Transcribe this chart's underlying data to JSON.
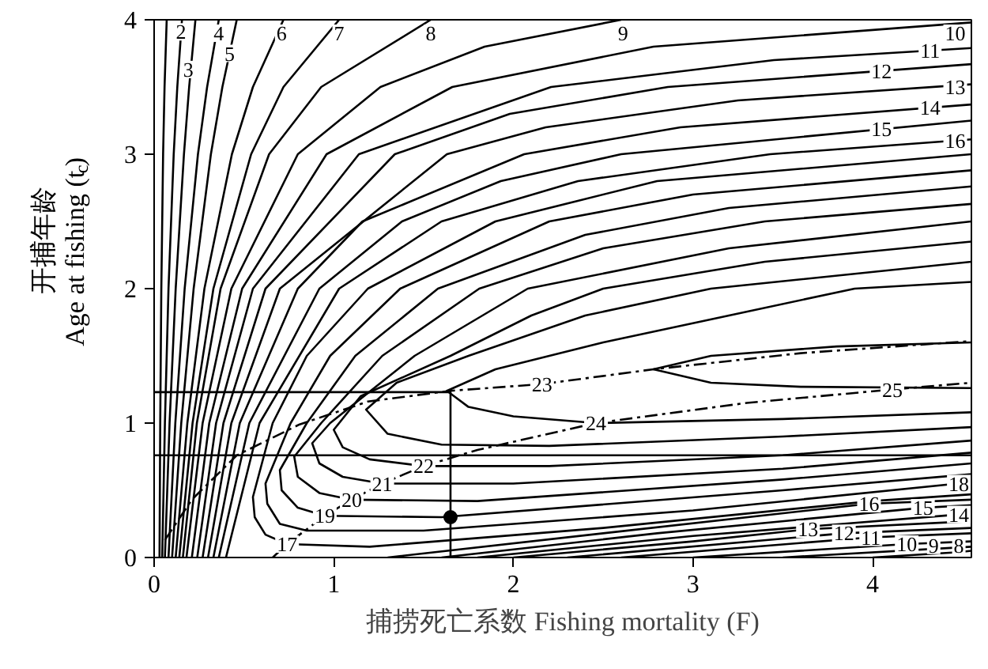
{
  "chart_data": {
    "type": "line",
    "xlabel": "捕捞死亡系数 Fishing mortality (F)",
    "ylabel": "开捕年龄\nAge at fishing (t$_{c}$)",
    "xlim": [
      0,
      4.55
    ],
    "ylim": [
      0,
      4
    ],
    "xticks": [
      0,
      1,
      2,
      3,
      4
    ],
    "yticks": [
      0,
      1,
      2,
      3,
      4
    ],
    "grid": false,
    "line_style": "solid",
    "series": [
      {
        "color": "#000000",
        "x": [
          0.03,
          0.034,
          0.04,
          0.05,
          0.058,
          0.07
        ],
        "values": [
          0,
          1,
          2,
          3,
          3.5,
          4
        ]
      },
      {
        "color": "#000000",
        "x": [
          0.045,
          0.06,
          0.08,
          0.109,
          0.129,
          0.155
        ],
        "values": [
          0,
          1,
          2,
          3,
          3.5,
          4
        ]
      },
      {
        "color": "#000000",
        "x": [
          0.06,
          0.086,
          0.12,
          0.166,
          0.195,
          0.23
        ],
        "values": [
          0,
          1,
          2,
          3,
          3.5,
          4
        ]
      },
      {
        "color": "#000000",
        "x": [
          0.08,
          0.118,
          0.17,
          0.244,
          0.295,
          0.36
        ],
        "values": [
          0,
          1,
          2,
          3,
          3.5,
          4
        ]
      },
      {
        "color": "#000000",
        "x": [
          0.1,
          0.151,
          0.22,
          0.316,
          0.38,
          0.46
        ],
        "values": [
          0,
          1,
          2,
          3,
          3.5,
          4
        ]
      },
      {
        "color": "#000000",
        "x": [
          0.12,
          0.185,
          0.28,
          0.433,
          0.55,
          0.72
        ],
        "values": [
          0,
          1,
          2,
          3,
          3.5,
          4
        ]
      },
      {
        "color": "#000000",
        "x": [
          0.14,
          0.214,
          0.33,
          0.54,
          0.72,
          1.03
        ],
        "values": [
          0,
          1,
          2,
          3,
          3.5,
          4
        ]
      },
      {
        "color": "#000000",
        "x": [
          0.16,
          0.238,
          0.37,
          0.64,
          0.93,
          1.54
        ],
        "values": [
          0,
          1,
          2,
          3,
          3.5,
          4
        ]
      },
      {
        "color": "#000000",
        "x": [
          0.18,
          0.27,
          0.43,
          0.8,
          1.26,
          1.84,
          2.6
        ],
        "values": [
          0,
          1,
          2,
          3,
          3.5,
          3.8,
          4
        ]
      },
      {
        "color": "#000000",
        "x": [
          0.21,
          0.307,
          0.49,
          0.96,
          1.66,
          2.78,
          4.55
        ],
        "values": [
          0,
          1,
          2,
          3,
          3.5,
          3.8,
          3.98
        ]
      },
      {
        "color": "#000000",
        "x": [
          0.24,
          0.345,
          0.55,
          1.14,
          2.21,
          3.45,
          4.55
        ],
        "values": [
          0,
          1,
          2,
          3,
          3.5,
          3.7,
          3.79
        ]
      },
      {
        "color": "#000000",
        "x": [
          0.27,
          0.386,
          0.62,
          1.34,
          1.98,
          2.86,
          4.55
        ],
        "values": [
          0,
          1,
          2,
          3,
          3.3,
          3.5,
          3.67
        ]
      },
      {
        "color": "#000000",
        "x": [
          0.3,
          0.43,
          0.7,
          1.63,
          2.18,
          3.25,
          4.55
        ],
        "values": [
          0,
          1,
          2,
          3,
          3.2,
          3.4,
          3.52
        ]
      },
      {
        "color": "#000000",
        "x": [
          0.33,
          0.477,
          0.8,
          1.16,
          2.06,
          2.93,
          4.55
        ],
        "values": [
          0,
          1,
          2,
          2.5,
          3,
          3.2,
          3.37
        ]
      },
      {
        "color": "#000000",
        "x": [
          0.36,
          0.53,
          0.92,
          1.38,
          1.93,
          2.6,
          4.55
        ],
        "values": [
          0,
          1,
          2,
          2.5,
          2.8,
          3,
          3.25
        ]
      },
      {
        "color": "#000000",
        "x": [
          0.4,
          0.587,
          1.03,
          1.6,
          2.36,
          3.43,
          4.55
        ],
        "values": [
          0,
          1,
          2,
          2.5,
          2.8,
          3,
          3.11
        ]
      },
      {
        "color": "#000000",
        "x": [
          4.55,
          2.8,
          1.9,
          1.19,
          0.85,
          0.66,
          0.55,
          0.56,
          0.62,
          0.74,
          1.2,
          2.5,
          4.0,
          4.55
        ],
        "values": [
          3.0,
          2.8,
          2.5,
          2,
          1.5,
          1,
          0.45,
          0.3,
          0.17,
          0.1,
          0.08,
          0.22,
          0.42,
          0.47
        ]
      },
      {
        "color": "#000000",
        "x": [
          4.55,
          3.0,
          2.2,
          1.37,
          0.98,
          0.76,
          0.62,
          0.63,
          0.7,
          0.85,
          1.5,
          3.0,
          4.55
        ],
        "values": [
          2.88,
          2.7,
          2.5,
          2,
          1.5,
          1,
          0.55,
          0.4,
          0.25,
          0.2,
          0.2,
          0.35,
          0.56
        ]
      },
      {
        "color": "#000000",
        "x": [
          4.55,
          3.2,
          2.4,
          1.58,
          1.12,
          0.85,
          0.7,
          0.71,
          0.8,
          0.95,
          1.6,
          3.5,
          4.55
        ],
        "values": [
          2.76,
          2.6,
          2.4,
          2,
          1.5,
          1,
          0.65,
          0.5,
          0.37,
          0.31,
          0.3,
          0.5,
          0.62
        ]
      },
      {
        "color": "#000000",
        "x": [
          4.55,
          3.4,
          2.5,
          1.81,
          1.27,
          0.93,
          0.78,
          0.8,
          0.92,
          1.1,
          1.8,
          3.5,
          4.55
        ],
        "values": [
          2.63,
          2.5,
          2.3,
          2,
          1.5,
          1,
          0.75,
          0.6,
          0.48,
          0.43,
          0.42,
          0.58,
          0.7
        ]
      },
      {
        "color": "#000000",
        "x": [
          4.55,
          3.2,
          2.08,
          1.45,
          0.98,
          0.88,
          0.92,
          1.05,
          1.27,
          2.0,
          3.5,
          4.55
        ],
        "values": [
          2.5,
          2.3,
          2,
          1.5,
          1,
          0.85,
          0.7,
          0.6,
          0.55,
          0.55,
          0.66,
          0.78
        ]
      },
      {
        "color": "#000000",
        "x": [
          4.55,
          3.4,
          2.5,
          2.1,
          1.65,
          1.15,
          1.0,
          1.05,
          1.2,
          1.5,
          2.2,
          3.5,
          4.55
        ],
        "values": [
          2.35,
          2.2,
          2,
          1.8,
          1.5,
          1.2,
          0.95,
          0.82,
          0.73,
          0.68,
          0.68,
          0.76,
          0.87
        ]
      },
      {
        "color": "#000000",
        "x": [
          4.55,
          3.1,
          2.4,
          1.75,
          1.35,
          1.18,
          1.3,
          1.6,
          2.2,
          3.5,
          4.55
        ],
        "values": [
          2.2,
          2,
          1.8,
          1.5,
          1.3,
          1.1,
          0.92,
          0.84,
          0.83,
          0.9,
          0.97
        ]
      },
      {
        "color": "#000000",
        "x": [
          4.55,
          3.9,
          3.2,
          2.5,
          1.9,
          1.63,
          1.75,
          2.0,
          2.46,
          3.5,
          4.55
        ],
        "values": [
          2.05,
          2,
          1.8,
          1.6,
          1.4,
          1.24,
          1.12,
          1.05,
          1.0,
          1.03,
          1.08
        ]
      },
      {
        "color": "#000000",
        "x": [
          4.55,
          3.8,
          3.1,
          2.78,
          3.1,
          3.6,
          4.55
        ],
        "values": [
          1.6,
          1.57,
          1.5,
          1.4,
          1.3,
          1.27,
          1.26
        ]
      },
      {
        "color": "#000000",
        "x": [
          1.3,
          2.5,
          3.98,
          4.55
        ],
        "values": [
          0,
          0.18,
          0.4,
          0.43
        ]
      },
      {
        "color": "#000000",
        "x": [
          1.6,
          2.8,
          4.28,
          4.55
        ],
        "values": [
          0,
          0.18,
          0.37,
          0.39
        ]
      },
      {
        "color": "#000000",
        "x": [
          1.8,
          3.0,
          4.48,
          4.55
        ],
        "values": [
          0,
          0.16,
          0.32,
          0.33
        ]
      },
      {
        "color": "#000000",
        "x": [
          2.0,
          3.0,
          3.64,
          4.55
        ],
        "values": [
          0,
          0.12,
          0.21,
          0.27
        ]
      },
      {
        "color": "#000000",
        "x": [
          2.3,
          3.84,
          4.55
        ],
        "values": [
          0,
          0.18,
          0.22
        ]
      },
      {
        "color": "#000000",
        "x": [
          2.6,
          3.99,
          4.55
        ],
        "values": [
          0,
          0.15,
          0.18
        ]
      },
      {
        "color": "#000000",
        "x": [
          3.0,
          4.19,
          4.55
        ],
        "values": [
          0,
          0.1,
          0.12
        ]
      },
      {
        "color": "#000000",
        "x": [
          3.5,
          4.55
        ],
        "values": [
          0,
          0.08
        ]
      },
      {
        "color": "#000000",
        "x": [
          4.0,
          4.48,
          4.55
        ],
        "values": [
          0,
          0.04,
          0.05
        ]
      },
      {
        "color": "#000000",
        "line_style": "dashed",
        "x": [
          0.06,
          0.21,
          0.46,
          0.81,
          1.19,
          1.65,
          2.16,
          2.78,
          3.6,
          4.55
        ],
        "values": [
          0.13,
          0.43,
          0.76,
          0.99,
          1.16,
          1.24,
          1.29,
          1.4,
          1.52,
          1.61
        ]
      },
      {
        "color": "#000000",
        "line_style": "dashed",
        "x": [
          0.66,
          0.74,
          0.95,
          1.1,
          1.27,
          1.5,
          1.8,
          2.46,
          3.3,
          4.11,
          4.55
        ],
        "values": [
          0,
          0.1,
          0.31,
          0.43,
          0.55,
          0.68,
          0.8,
          1.0,
          1.15,
          1.25,
          1.3
        ]
      },
      {
        "color": "#000000",
        "x": [
          0,
          1.65,
          1.65
        ],
        "values": [
          1.23,
          1.23,
          0
        ]
      },
      {
        "type": "scatter",
        "marker": "circle",
        "color": "#000000",
        "x": [
          1.65
        ],
        "values": [
          0.3
        ]
      }
    ],
    "ref_lines": [
      {
        "axis": "y",
        "value": 0.76,
        "color": "#000000"
      }
    ],
    "annotations": [
      {
        "text": "2",
        "x": 0.15,
        "y": 3.91
      },
      {
        "text": "3",
        "x": 0.19,
        "y": 3.63
      },
      {
        "text": "4",
        "x": 0.36,
        "y": 3.9
      },
      {
        "text": "5",
        "x": 0.42,
        "y": 3.75
      },
      {
        "text": "6",
        "x": 0.71,
        "y": 3.9
      },
      {
        "text": "7",
        "x": 1.03,
        "y": 3.9
      },
      {
        "text": "8",
        "x": 1.54,
        "y": 3.9
      },
      {
        "text": "9",
        "x": 2.61,
        "y": 3.9
      },
      {
        "text": "10",
        "x": 4.46,
        "y": 3.9
      },
      {
        "text": "11",
        "x": 4.32,
        "y": 3.77
      },
      {
        "text": "12",
        "x": 4.05,
        "y": 3.62
      },
      {
        "text": "13",
        "x": 4.46,
        "y": 3.5
      },
      {
        "text": "14",
        "x": 4.32,
        "y": 3.35
      },
      {
        "text": "15",
        "x": 4.05,
        "y": 3.19
      },
      {
        "text": "16",
        "x": 4.46,
        "y": 3.1
      },
      {
        "text": "17",
        "x": 0.74,
        "y": 0.1
      },
      {
        "text": "19",
        "x": 0.95,
        "y": 0.31
      },
      {
        "text": "20",
        "x": 1.1,
        "y": 0.43
      },
      {
        "text": "21",
        "x": 1.27,
        "y": 0.55
      },
      {
        "text": "22",
        "x": 1.5,
        "y": 0.68
      },
      {
        "text": "23",
        "x": 2.16,
        "y": 1.29
      },
      {
        "text": "24",
        "x": 2.46,
        "y": 1.0
      },
      {
        "text": "25",
        "x": 4.11,
        "y": 1.25
      },
      {
        "text": "18",
        "x": 4.48,
        "y": 0.55
      },
      {
        "text": "16",
        "x": 3.98,
        "y": 0.4
      },
      {
        "text": "15",
        "x": 4.28,
        "y": 0.37
      },
      {
        "text": "14",
        "x": 4.48,
        "y": 0.32
      },
      {
        "text": "13",
        "x": 3.64,
        "y": 0.21
      },
      {
        "text": "12",
        "x": 3.84,
        "y": 0.18
      },
      {
        "text": "11",
        "x": 3.99,
        "y": 0.15
      },
      {
        "text": "10",
        "x": 4.19,
        "y": 0.1
      },
      {
        "text": "9",
        "x": 4.34,
        "y": 0.09
      },
      {
        "text": "8",
        "x": 4.48,
        "y": 0.09
      }
    ]
  }
}
